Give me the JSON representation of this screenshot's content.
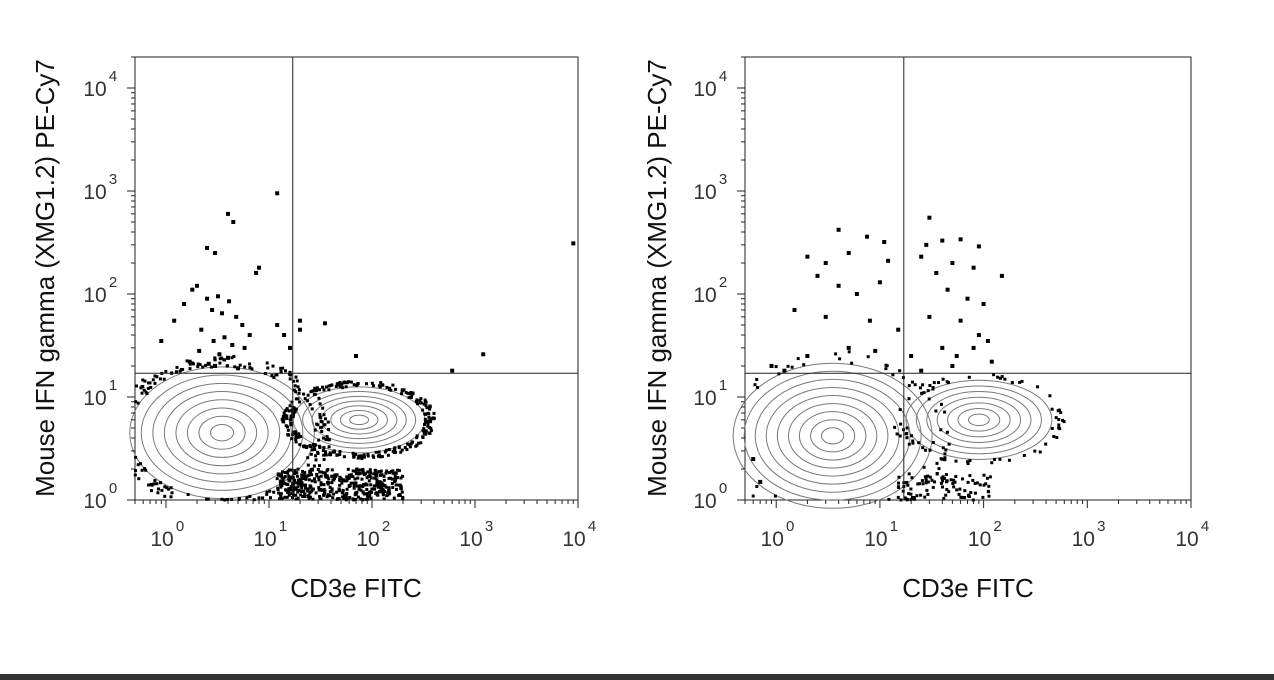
{
  "colors": {
    "points": "#000000",
    "contours": "#7a7a7a",
    "axes": "#222222",
    "footer_bar": "#333333",
    "tick_text": "#333333"
  },
  "chart_data": [
    {
      "type": "scatter",
      "subtype": "flow-cytometry contour plot with outlier dots",
      "xlabel": "CD3e FITC",
      "ylabel": "Mouse IFN gamma (XMG1.2) PE-Cy7",
      "x_scale": "log",
      "y_scale": "log",
      "xlim": [
        0.5,
        10000
      ],
      "ylim": [
        1,
        20000
      ],
      "x_ticks": [
        {
          "base": "10",
          "exp": "0",
          "value": 1
        },
        {
          "base": "10",
          "exp": "1",
          "value": 10
        },
        {
          "base": "10",
          "exp": "2",
          "value": 100
        },
        {
          "base": "10",
          "exp": "3",
          "value": 1000
        },
        {
          "base": "10",
          "exp": "4",
          "value": 10000
        }
      ],
      "y_ticks": [
        {
          "base": "10",
          "exp": "0",
          "value": 1
        },
        {
          "base": "10",
          "exp": "1",
          "value": 10
        },
        {
          "base": "10",
          "exp": "2",
          "value": 100
        },
        {
          "base": "10",
          "exp": "3",
          "value": 1000
        },
        {
          "base": "10",
          "exp": "4",
          "value": 10000
        }
      ],
      "quadrant_gate": {
        "x": 17,
        "y": 17
      },
      "populations": [
        {
          "center": [
            3.5,
            4.5
          ],
          "spread": [
            0.28,
            0.2
          ],
          "levels": 8
        },
        {
          "center": [
            75,
            6
          ],
          "spread": [
            0.2,
            0.1
          ],
          "levels": 7
        }
      ],
      "points": [
        [
          4,
          600
        ],
        [
          4.5,
          500
        ],
        [
          12,
          950
        ],
        [
          2.5,
          280
        ],
        [
          3,
          250
        ],
        [
          8,
          180
        ],
        [
          7.5,
          160
        ],
        [
          2,
          120
        ],
        [
          1.8,
          110
        ],
        [
          2.5,
          90
        ],
        [
          3.2,
          95
        ],
        [
          4.1,
          85
        ],
        [
          1.5,
          80
        ],
        [
          2.8,
          70
        ],
        [
          3.5,
          65
        ],
        [
          4.8,
          60
        ],
        [
          1.2,
          55
        ],
        [
          5.5,
          50
        ],
        [
          2.2,
          45
        ],
        [
          6.5,
          40
        ],
        [
          3.7,
          38
        ],
        [
          2.9,
          35
        ],
        [
          0.9,
          35
        ],
        [
          4.4,
          32
        ],
        [
          5.8,
          30
        ],
        [
          2.1,
          28
        ],
        [
          3.3,
          26
        ],
        [
          4,
          24
        ],
        [
          1.7,
          22
        ],
        [
          2.6,
          21
        ],
        [
          3,
          20
        ],
        [
          5,
          19
        ],
        [
          12,
          50
        ],
        [
          20,
          55
        ],
        [
          20,
          45
        ],
        [
          14,
          40
        ],
        [
          35,
          52
        ],
        [
          16,
          30
        ],
        [
          70,
          25
        ],
        [
          600,
          18
        ],
        [
          1200,
          26
        ],
        [
          9000,
          310
        ]
      ],
      "bottom_cluster": {
        "x": [
          12,
          200
        ],
        "y": [
          1,
          2
        ]
      }
    },
    {
      "type": "scatter",
      "subtype": "flow-cytometry contour plot with outlier dots",
      "xlabel": "CD3e FITC",
      "ylabel": "Mouse IFN gamma (XMG1.2) PE-Cy7",
      "x_scale": "log",
      "y_scale": "log",
      "xlim": [
        0.5,
        10000
      ],
      "ylim": [
        1,
        20000
      ],
      "x_ticks": [
        {
          "base": "10",
          "exp": "0",
          "value": 1
        },
        {
          "base": "10",
          "exp": "1",
          "value": 10
        },
        {
          "base": "10",
          "exp": "2",
          "value": 100
        },
        {
          "base": "10",
          "exp": "3",
          "value": 1000
        },
        {
          "base": "10",
          "exp": "4",
          "value": 10000
        }
      ],
      "y_ticks": [
        {
          "base": "10",
          "exp": "0",
          "value": 1
        },
        {
          "base": "10",
          "exp": "1",
          "value": 10
        },
        {
          "base": "10",
          "exp": "2",
          "value": 100
        },
        {
          "base": "10",
          "exp": "3",
          "value": 1000
        },
        {
          "base": "10",
          "exp": "4",
          "value": 10000
        }
      ],
      "quadrant_gate": {
        "x": 17,
        "y": 17
      },
      "populations": [
        {
          "center": [
            3.5,
            4.2
          ],
          "spread": [
            0.3,
            0.22
          ],
          "levels": 9
        },
        {
          "center": [
            90,
            6
          ],
          "spread": [
            0.22,
            0.12
          ],
          "levels": 7
        }
      ],
      "points": [
        [
          4,
          420
        ],
        [
          30,
          550
        ],
        [
          7.5,
          360
        ],
        [
          11,
          320
        ],
        [
          40,
          330
        ],
        [
          28,
          300
        ],
        [
          60,
          340
        ],
        [
          90,
          290
        ],
        [
          2,
          230
        ],
        [
          3,
          200
        ],
        [
          5,
          250
        ],
        [
          12,
          210
        ],
        [
          25,
          230
        ],
        [
          50,
          200
        ],
        [
          80,
          180
        ],
        [
          150,
          150
        ],
        [
          2.5,
          150
        ],
        [
          4,
          120
        ],
        [
          6,
          100
        ],
        [
          10,
          130
        ],
        [
          35,
          160
        ],
        [
          45,
          110
        ],
        [
          70,
          90
        ],
        [
          100,
          80
        ],
        [
          1.5,
          70
        ],
        [
          3,
          60
        ],
        [
          8,
          55
        ],
        [
          15,
          45
        ],
        [
          30,
          60
        ],
        [
          60,
          55
        ],
        [
          90,
          40
        ],
        [
          110,
          35
        ],
        [
          0.9,
          20
        ],
        [
          2,
          25
        ],
        [
          5,
          30
        ],
        [
          9,
          28
        ],
        [
          20,
          25
        ],
        [
          40,
          30
        ],
        [
          55,
          25
        ],
        [
          120,
          22
        ],
        [
          1.2,
          18
        ],
        [
          25,
          18
        ],
        [
          50,
          20
        ],
        [
          80,
          30
        ],
        [
          0.6,
          2.5
        ],
        [
          0.7,
          1.5
        ]
      ],
      "bottom_cluster": {
        "x": [
          15,
          120
        ],
        "y": [
          1,
          1.8
        ]
      }
    }
  ]
}
